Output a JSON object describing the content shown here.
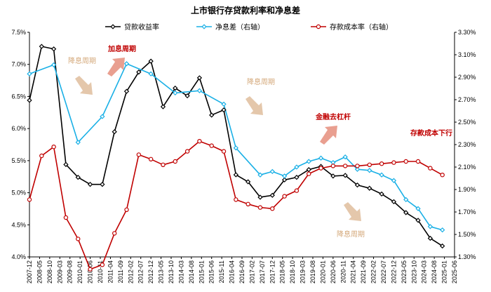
{
  "chart_data": {
    "type": "line",
    "title": "上市银行存贷款利率和净息差",
    "categories": [
      "2007-12",
      "2008-05",
      "2008-10",
      "2009-03",
      "2009-08",
      "2010-01",
      "2010-06",
      "2010-11",
      "2011-04",
      "2011-09",
      "2012-02",
      "2012-07",
      "2012-12",
      "2013-05",
      "2013-10",
      "2014-03",
      "2014-08",
      "2015-01",
      "2015-06",
      "2015-11",
      "2016-04",
      "2016-09",
      "2017-02",
      "2017-07",
      "2017-12",
      "2018-05",
      "2018-10",
      "2019-03",
      "2019-08",
      "2020-01",
      "2020-06",
      "2020-11",
      "2021-04",
      "2021-09",
      "2022-02",
      "2022-07",
      "2022-12",
      "2023-05",
      "2023-10",
      "2024-03",
      "2024-08",
      "2025-01",
      "2025-06"
    ],
    "left_axis": {
      "min": 4.0,
      "max": 7.5,
      "ticks": [
        "4.0%",
        "4.5%",
        "5.0%",
        "5.5%",
        "6.0%",
        "6.5%",
        "7.0%",
        "7.5%"
      ]
    },
    "right_axis": {
      "min": 1.3,
      "max": 3.3,
      "ticks": [
        "1.30%",
        "1.50%",
        "1.70%",
        "1.90%",
        "2.10%",
        "2.30%",
        "2.50%",
        "2.70%",
        "2.90%",
        "3.10%",
        "3.30%"
      ]
    },
    "series": [
      {
        "name": "贷款收益率",
        "axis": "left",
        "color": "#000000",
        "marker": "diamond",
        "points": [
          [
            "2007-12",
            6.44
          ],
          [
            "2008-06",
            7.28
          ],
          [
            "2008-12",
            7.24
          ],
          [
            "2009-06",
            5.44
          ],
          [
            "2009-12",
            5.24
          ],
          [
            "2010-06",
            5.13
          ],
          [
            "2010-12",
            5.13
          ],
          [
            "2011-06",
            5.95
          ],
          [
            "2011-12",
            6.58
          ],
          [
            "2012-06",
            6.88
          ],
          [
            "2012-12",
            7.05
          ],
          [
            "2013-06",
            6.34
          ],
          [
            "2013-12",
            6.63
          ],
          [
            "2014-06",
            6.51
          ],
          [
            "2014-12",
            6.79
          ],
          [
            "2015-06",
            6.21
          ],
          [
            "2015-12",
            6.29
          ],
          [
            "2016-06",
            5.28
          ],
          [
            "2016-12",
            5.17
          ],
          [
            "2017-06",
            4.93
          ],
          [
            "2017-12",
            4.96
          ],
          [
            "2018-06",
            5.2
          ],
          [
            "2018-12",
            5.24
          ],
          [
            "2019-06",
            5.36
          ],
          [
            "2019-12",
            5.41
          ],
          [
            "2020-06",
            5.26
          ],
          [
            "2020-12",
            5.27
          ],
          [
            "2021-06",
            5.12
          ],
          [
            "2021-12",
            5.07
          ],
          [
            "2022-06",
            4.98
          ],
          [
            "2022-12",
            4.86
          ],
          [
            "2023-06",
            4.69
          ],
          [
            "2023-12",
            4.57
          ],
          [
            "2024-06",
            4.29
          ],
          [
            "2024-12",
            4.17
          ]
        ]
      },
      {
        "name": "净息差（右轴）",
        "axis": "right",
        "color": "#1ab0e6",
        "marker": "diamond-open",
        "points": [
          [
            "2007-12",
            2.93
          ],
          [
            "2008-12",
            3.01
          ],
          [
            "2009-12",
            2.32
          ],
          [
            "2010-12",
            2.55
          ],
          [
            "2011-12",
            3.02
          ],
          [
            "2012-12",
            2.93
          ],
          [
            "2013-12",
            2.76
          ],
          [
            "2014-12",
            2.78
          ],
          [
            "2015-12",
            2.66
          ],
          [
            "2016-06",
            2.27
          ],
          [
            "2017-06",
            2.03
          ],
          [
            "2017-12",
            2.06
          ],
          [
            "2018-06",
            2.02
          ],
          [
            "2018-12",
            2.1
          ],
          [
            "2019-06",
            2.15
          ],
          [
            "2019-12",
            2.18
          ],
          [
            "2020-06",
            2.14
          ],
          [
            "2020-12",
            2.19
          ],
          [
            "2021-06",
            2.08
          ],
          [
            "2021-12",
            2.07
          ],
          [
            "2022-06",
            2.03
          ],
          [
            "2022-12",
            1.98
          ],
          [
            "2023-06",
            1.81
          ],
          [
            "2023-12",
            1.73
          ],
          [
            "2024-06",
            1.57
          ],
          [
            "2024-12",
            1.54
          ]
        ]
      },
      {
        "name": "存款成本率（右轴）",
        "axis": "right",
        "color": "#c00000",
        "marker": "circle",
        "points": [
          [
            "2007-12",
            1.81
          ],
          [
            "2008-06",
            2.2
          ],
          [
            "2008-12",
            2.28
          ],
          [
            "2009-06",
            1.65
          ],
          [
            "2009-12",
            1.46
          ],
          [
            "2010-06",
            1.19
          ],
          [
            "2010-12",
            1.23
          ],
          [
            "2011-06",
            1.51
          ],
          [
            "2011-12",
            1.72
          ],
          [
            "2012-06",
            2.21
          ],
          [
            "2012-12",
            2.17
          ],
          [
            "2013-06",
            2.12
          ],
          [
            "2013-12",
            2.15
          ],
          [
            "2014-06",
            2.24
          ],
          [
            "2014-12",
            2.33
          ],
          [
            "2015-06",
            2.29
          ],
          [
            "2015-12",
            2.24
          ],
          [
            "2016-06",
            1.81
          ],
          [
            "2016-12",
            1.77
          ],
          [
            "2017-06",
            1.74
          ],
          [
            "2017-12",
            1.73
          ],
          [
            "2018-06",
            1.84
          ],
          [
            "2018-12",
            1.89
          ],
          [
            "2019-06",
            2.04
          ],
          [
            "2019-12",
            2.09
          ],
          [
            "2020-06",
            2.11
          ],
          [
            "2020-12",
            2.11
          ],
          [
            "2021-06",
            2.11
          ],
          [
            "2021-12",
            2.12
          ],
          [
            "2022-06",
            2.13
          ],
          [
            "2022-12",
            2.14
          ],
          [
            "2023-06",
            2.15
          ],
          [
            "2023-12",
            2.15
          ],
          [
            "2024-06",
            2.09
          ],
          [
            "2024-12",
            2.03
          ]
        ]
      }
    ],
    "legend_position": "top",
    "grid": false,
    "annotations": [
      {
        "text": "降息周期",
        "color": "#d4a87a",
        "arrow": "down"
      },
      {
        "text": "加息周期",
        "color": "#c00000",
        "arrow": "up"
      },
      {
        "text": "降息周期",
        "color": "#d4a87a",
        "arrow": "down"
      },
      {
        "text": "金融去杠杆",
        "color": "#c00000",
        "arrow": "up"
      },
      {
        "text": "存款成本下行",
        "color": "#c00000",
        "arrow": "none"
      },
      {
        "text": "降息周期",
        "color": "#d4a87a",
        "arrow": "down"
      }
    ]
  }
}
